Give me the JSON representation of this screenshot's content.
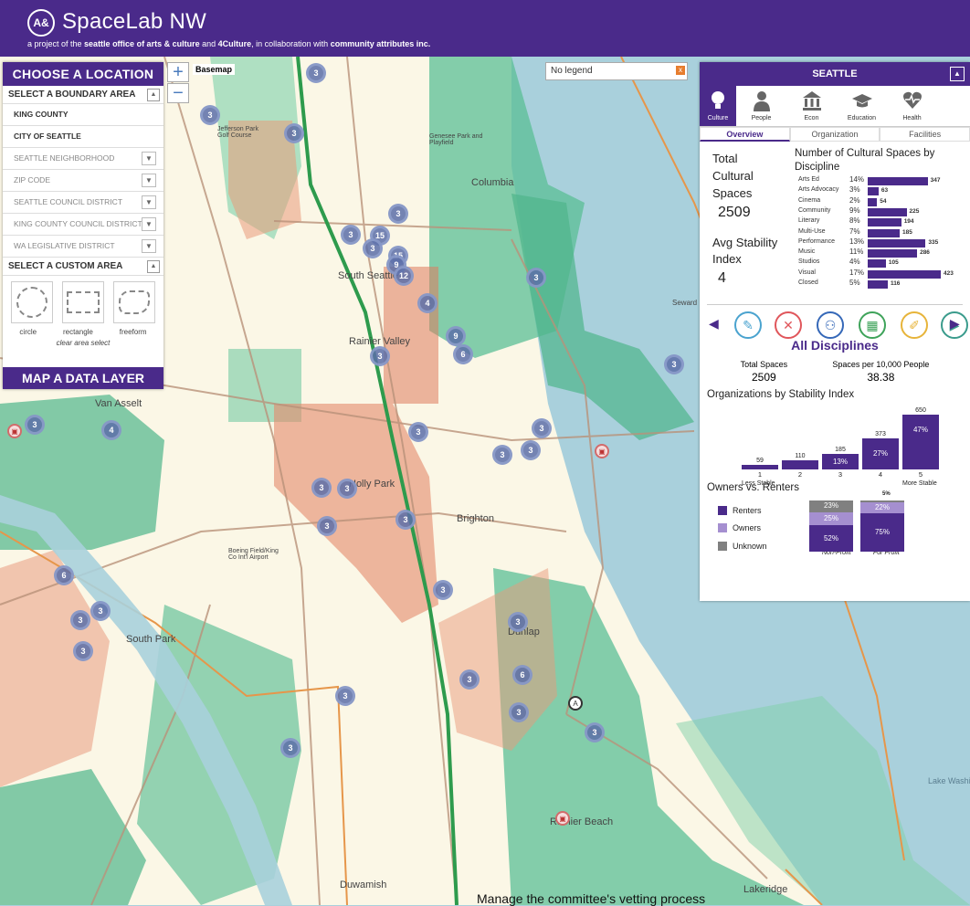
{
  "header": {
    "logo": "A&",
    "title": "SpaceLab NW",
    "subtitle_pre": "a project of the ",
    "subtitle_org1": "seattle office of arts & culture",
    "subtitle_mid1": " and ",
    "subtitle_org2": "4Culture",
    "subtitle_mid2": ", in collaboration with ",
    "subtitle_org3": "community attributes inc."
  },
  "map_controls": {
    "zoom_in": "+",
    "zoom_out": "−",
    "basemap": "Basemap",
    "legend_placeholder": "No legend",
    "legend_close": "x"
  },
  "left_panel": {
    "title": "CHOOSE A LOCATION",
    "boundary_title": "SELECT A BOUNDARY AREA",
    "boundary_options": [
      {
        "label": "KING COUNTY",
        "type": "bold"
      },
      {
        "label": "CITY OF SEATTLE",
        "type": "bold"
      },
      {
        "label": "SEATTLE NEIGHBORHOOD",
        "type": "drop"
      },
      {
        "label": "ZIP CODE",
        "type": "drop"
      },
      {
        "label": "SEATTLE COUNCIL DISTRICT",
        "type": "drop"
      },
      {
        "label": "KING COUNTY COUNCIL DISTRICT",
        "type": "drop"
      },
      {
        "label": "WA LEGISLATIVE DISTRICT",
        "type": "drop"
      }
    ],
    "custom_title": "SELECT A CUSTOM AREA",
    "shapes": [
      "circle",
      "rectangle",
      "freeform"
    ],
    "clear_area": "clear area select",
    "map_layer_button": "MAP A DATA LAYER"
  },
  "right_panel": {
    "title": "SEATTLE",
    "category_tabs": [
      {
        "label": "Culture",
        "icon": "lightbulb-icon",
        "active": true
      },
      {
        "label": "People",
        "icon": "person-icon",
        "active": false
      },
      {
        "label": "Econ",
        "icon": "bank-icon",
        "active": false
      },
      {
        "label": "Education",
        "icon": "graduation-cap-icon",
        "active": false
      },
      {
        "label": "Health",
        "icon": "heart-pulse-icon",
        "active": false
      }
    ],
    "sub_tabs": [
      "Overview",
      "Organization",
      "Facilities"
    ],
    "overview": {
      "total_label_1": "Total",
      "total_label_2": "Cultural",
      "total_label_3": "Spaces",
      "total_value": "2509",
      "stability_label_1": "Avg Stability",
      "stability_label_2": "Index",
      "stability_value": "4",
      "disc_title": "Number of Cultural Spaces by Discipline"
    },
    "all_disciplines": "All Disciplines",
    "stats": {
      "total_label": "Total Spaces",
      "total_value": "2509",
      "per_label": "Spaces per 10,000 People",
      "per_value": "38.38"
    },
    "stability_title": "Organizations by Stability Index",
    "stability_left": "Less Stable",
    "stability_right": "More Stable",
    "owners_title": "Owners vs. Renters",
    "owners_legend": [
      "Renters",
      "Owners",
      "Unknown"
    ],
    "owners_cols": [
      "Non-Profit",
      "For Profit"
    ],
    "owners_top_note": "5%"
  },
  "chart_data": [
    {
      "type": "bar",
      "title": "Number of Cultural Spaces by Discipline",
      "categories": [
        "Arts Ed",
        "Arts Advocacy",
        "Cinema",
        "Community",
        "Literary",
        "Multi-Use",
        "Performance",
        "Music",
        "Studios",
        "Visual",
        "Closed"
      ],
      "percent_labels": [
        "14%",
        "3%",
        "2%",
        "9%",
        "8%",
        "7%",
        "13%",
        "11%",
        "4%",
        "17%",
        "5%"
      ],
      "values": [
        347,
        63,
        54,
        225,
        194,
        185,
        335,
        286,
        105,
        423,
        116
      ]
    },
    {
      "type": "bar",
      "title": "Organizations by Stability Index",
      "categories": [
        "1",
        "2",
        "3",
        "4",
        "5"
      ],
      "values": [
        59,
        110,
        185,
        373,
        650
      ],
      "percent_labels": [
        "",
        "",
        "13%",
        "27%",
        "47%"
      ]
    },
    {
      "type": "bar",
      "title": "Owners vs. Renters",
      "categories": [
        "Non-Profit",
        "For Profit"
      ],
      "series": [
        {
          "name": "Renters",
          "values": [
            52,
            75
          ],
          "labels": [
            "52%",
            "75%"
          ]
        },
        {
          "name": "Owners",
          "values": [
            25,
            22
          ],
          "labels": [
            "25%",
            "22%"
          ]
        },
        {
          "name": "Unknown",
          "values": [
            23,
            3
          ],
          "labels": [
            "23%",
            ""
          ]
        }
      ]
    }
  ],
  "map": {
    "places": [
      "Columbia",
      "South Seattle",
      "Rainier Valley",
      "Van Asselt",
      "Holly Park",
      "Brighton",
      "Dunlap",
      "South Park",
      "Rainier Beach",
      "Lake Washington",
      "Lakeridge",
      "Duwamish",
      "Seward Park",
      "Genesee Park and Playfield",
      "Jefferson Park Golf Course",
      "Boeing Field/King Co Int'l Airport"
    ],
    "clusters": [
      "3",
      "3",
      "3",
      "3",
      "15",
      "3",
      "3",
      "15",
      "9",
      "12",
      "3",
      "4",
      "9",
      "6",
      "3",
      "3",
      "3",
      "4",
      "3",
      "3",
      "3",
      "3",
      "3",
      "3",
      "3",
      "3",
      "3",
      "6",
      "3",
      "3",
      "3",
      "3",
      "3",
      "3",
      "6",
      "3",
      "3",
      "3"
    ]
  },
  "footer_snippet": "Manage the committee's vetting process",
  "colors": {
    "brand": "#4a2a8a",
    "owners": "#a58fd0",
    "unknown": "#808080",
    "high": "#2fa87e",
    "low": "#e5886a"
  }
}
